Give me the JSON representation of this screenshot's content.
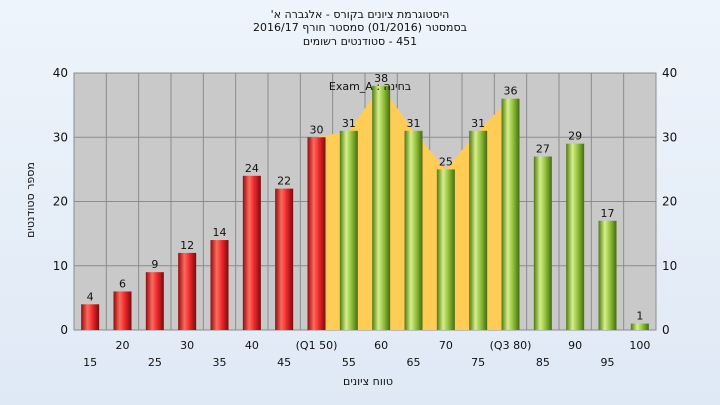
{
  "chart_data": {
    "type": "bar",
    "title_lines": [
      "היסטוגרמת ציונים בקורס - אלגברה א'",
      "בסמסטר (01/2016)  סמסטר חורף 2016/17",
      "451 - סטודנטים רשומים"
    ],
    "annotation": "בחינה : Exam_A",
    "xlabel": "טווח ציונים",
    "ylabel": "מספר סטודנטים",
    "ylim": [
      0,
      40
    ],
    "yticks": [
      0,
      10,
      20,
      30,
      40
    ],
    "grid": true,
    "categories": [
      "15",
      "20",
      "25",
      "30",
      "35",
      "40",
      "45",
      "(Q1 50)",
      "55",
      "60",
      "65",
      "70",
      "75",
      "(Q3 80)",
      "85",
      "90",
      "95",
      "100"
    ],
    "values": [
      4,
      6,
      9,
      12,
      14,
      24,
      22,
      30,
      31,
      38,
      31,
      25,
      31,
      36,
      27,
      29,
      17,
      1
    ],
    "bar_groups": [
      "red",
      "red",
      "red",
      "red",
      "red",
      "red",
      "red",
      "red",
      "green",
      "green",
      "green",
      "green",
      "green",
      "green",
      "green",
      "green",
      "green",
      "green"
    ],
    "interquartile_band": {
      "from_category": "(Q1 50)",
      "to_category": "(Q3 80)",
      "color": "#ffcc55"
    },
    "colors": {
      "red": "#e8262a",
      "green": "#8fbf3a",
      "plot_bg": "#c9c9c9",
      "band": "#ffcc55"
    }
  }
}
